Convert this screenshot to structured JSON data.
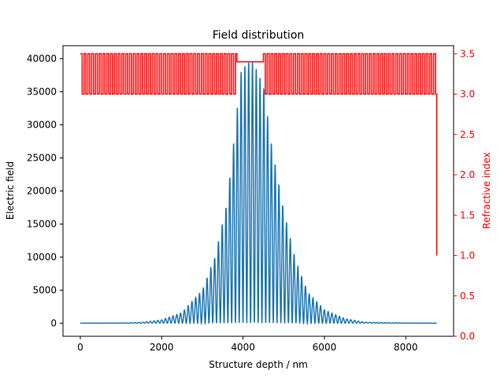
{
  "chart_data": {
    "type": "line",
    "title": "Field distribution",
    "xlabel": "Structure depth / nm",
    "ylabel_left": "Electric field",
    "ylabel_right": "Refractive index",
    "xlim": [
      -425,
      9175
    ],
    "xticks": [
      0,
      2000,
      4000,
      6000,
      8000
    ],
    "ylim_left": [
      -1975,
      41975
    ],
    "yticks_left": [
      0,
      5000,
      10000,
      15000,
      20000,
      25000,
      30000,
      35000,
      40000
    ],
    "ylim_right": [
      0.0,
      3.6
    ],
    "yticks_right": [
      0.0,
      0.5,
      1.0,
      1.5,
      2.0,
      2.5,
      3.0,
      3.5
    ],
    "grid": false,
    "colors": {
      "field": "#1f77b4",
      "index": "#ff0000",
      "axis": "#000000"
    },
    "series": [
      {
        "name": "",
        "axis": "left",
        "color": "#1f77b4",
        "description_points": {
          "x": [
            0,
            1000,
            1500,
            2000,
            2500,
            3000,
            3300,
            3600,
            3800,
            3950,
            4100,
            4250,
            4500,
            4700,
            5000,
            5300,
            5600,
            6000,
            6500,
            7000,
            8000,
            8760
          ],
          "peak_envelope": [
            0,
            20,
            120,
            500,
            1600,
            5000,
            9800,
            18000,
            29000,
            38000,
            39500,
            39500,
            36000,
            27000,
            17000,
            9300,
            4600,
            2000,
            700,
            150,
            20,
            0
          ],
          "oscillation_period_nm": 93
        }
      },
      {
        "name": "",
        "axis": "right",
        "color": "#ff0000",
        "levels": {
          "high": 3.5,
          "low": 3.0,
          "cavity": 3.4,
          "substrate_end": 1.0
        },
        "segments": [
          {
            "from": 0,
            "to": 3850,
            "type": "alternating",
            "period_nm": 93
          },
          {
            "from": 3850,
            "to": 4500,
            "type": "cavity"
          },
          {
            "from": 4500,
            "to": 8740,
            "type": "alternating",
            "period_nm": 93
          },
          {
            "from": 8740,
            "to": 8760,
            "type": "drop"
          }
        ]
      }
    ]
  }
}
